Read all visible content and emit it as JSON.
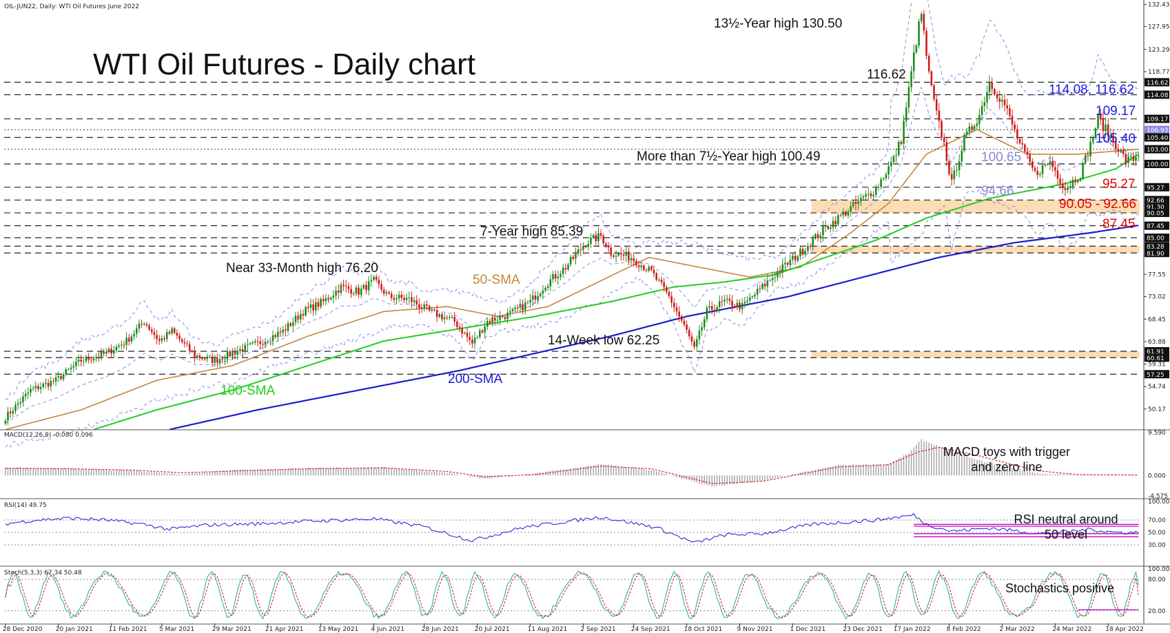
{
  "header": {
    "symbol_line": "OIL-JUN22, Daily:  WTI Oil Futures June 2022",
    "title": "WTI Oil Futures - Daily chart"
  },
  "colors": {
    "sma50": "#c8843c",
    "sma100": "#22cc22",
    "sma200": "#1a1ad0",
    "bollinger": "#8a8ae6",
    "zone": "#fcdcb4",
    "candle_up": "#1b8a1b",
    "candle_down": "#d01818",
    "red_label": "#e00000",
    "blue_label": "#1a1ae6",
    "purple_label": "#8a8ad6",
    "macd_hist": "#a0a0a0",
    "signal": "#e02020",
    "rsi": "#1a1ad0",
    "stoch_k": "#28b4a0",
    "stoch_d": "#e02020",
    "rsi_box": "#c000c0"
  },
  "chart_data": [
    {
      "type": "line",
      "title": "WTI Oil Futures - Daily chart",
      "subtitle": "OIL-JUN22, Daily:  WTI Oil Futures June 2022",
      "x": [
        "28 Dec 2020",
        "20 Jan 2021",
        "11 Feb 2021",
        "5 Mar 2021",
        "29 Mar 2021",
        "21 Apr 2021",
        "13 May 2021",
        "4 Jun 2021",
        "28 Jun 2021",
        "20 Jul 2021",
        "11 Aug 2021",
        "2 Sep 2021",
        "24 Sep 2021",
        "18 Oct 2021",
        "9 Nov 2021",
        "1 Dec 2021",
        "23 Dec 2021",
        "17 Jan 2022",
        "8 Feb 2022",
        "2 Mar 2022",
        "24 Mar 2022",
        "18 Apr 2022"
      ],
      "ylim": [
        46.5,
        132.5
      ],
      "y_ticks": [
        "132.43",
        "127.95",
        "123.29",
        "118.77",
        "114.08",
        "109.17",
        "105.40",
        "100.00",
        "95.27",
        "90.05",
        "85.00",
        "81.90",
        "77.55",
        "73.02",
        "68.45",
        "63.88",
        "59.31",
        "54.74",
        "50.17"
      ],
      "y_ticks_values": [
        132.43,
        127.95,
        123.29,
        118.77,
        114.08,
        109.17,
        105.4,
        100.0,
        95.27,
        90.05,
        85.0,
        81.9,
        77.55,
        73.02,
        68.45,
        63.88,
        59.31,
        54.74,
        50.17
      ],
      "level_boxes": [
        "116.62",
        "114.08",
        "109.17",
        "106.93",
        "105.40",
        "103.00",
        "100.00",
        "95.27",
        "92.66",
        "91.30",
        "90.05",
        "87.45",
        "85.00",
        "83.28",
        "81.90",
        "61.91",
        "60.61",
        "57.25"
      ],
      "level_box_values": [
        116.62,
        114.08,
        109.17,
        106.93,
        105.4,
        103.0,
        100.0,
        95.27,
        92.66,
        91.3,
        90.05,
        87.45,
        85.0,
        83.28,
        81.9,
        61.91,
        60.61,
        57.25
      ],
      "level_box_highlight": [
        "106.93"
      ],
      "dashed_levels": [
        116.62,
        114.08,
        109.17,
        105.4,
        100.0,
        95.27,
        92.66,
        90.05,
        87.45,
        85.0,
        83.28,
        81.9,
        61.91,
        60.61,
        57.25
      ],
      "dotted_levels": [
        103.0,
        106.93
      ],
      "zones": [
        [
          90.05,
          92.66
        ],
        [
          81.9,
          83.28
        ],
        [
          60.61,
          61.91
        ]
      ],
      "price_anchors": [
        [
          0,
          48.5
        ],
        [
          10,
          54
        ],
        [
          20,
          56
        ],
        [
          30,
          60
        ],
        [
          40,
          61.5
        ],
        [
          48,
          64
        ],
        [
          55,
          68
        ],
        [
          61,
          64
        ],
        [
          66,
          66
        ],
        [
          75,
          61
        ],
        [
          83,
          60
        ],
        [
          92,
          62
        ],
        [
          100,
          63.5
        ],
        [
          110,
          66
        ],
        [
          118,
          70
        ],
        [
          126,
          72
        ],
        [
          133,
          75
        ],
        [
          140,
          74
        ],
        [
          146,
          76.2
        ],
        [
          152,
          73
        ],
        [
          160,
          72.5
        ],
        [
          168,
          70
        ],
        [
          178,
          68
        ],
        [
          185,
          63.5
        ],
        [
          191,
          68
        ],
        [
          200,
          69.5
        ],
        [
          208,
          72
        ],
        [
          214,
          75.5
        ],
        [
          222,
          79
        ],
        [
          230,
          84
        ],
        [
          236,
          85.39
        ],
        [
          240,
          82
        ],
        [
          248,
          81
        ],
        [
          256,
          78
        ],
        [
          263,
          73
        ],
        [
          270,
          66
        ],
        [
          273,
          62.25
        ],
        [
          278,
          70
        ],
        [
          285,
          72
        ],
        [
          292,
          71
        ],
        [
          298,
          74
        ],
        [
          306,
          78
        ],
        [
          315,
          82
        ],
        [
          325,
          87
        ],
        [
          335,
          91
        ],
        [
          345,
          95
        ],
        [
          352,
          101
        ],
        [
          355,
          105
        ],
        [
          358,
          115
        ],
        [
          360,
          122
        ],
        [
          362,
          128
        ],
        [
          363,
          130.5
        ],
        [
          366,
          118
        ],
        [
          369,
          110
        ],
        [
          372,
          104
        ],
        [
          375,
          96
        ],
        [
          380,
          105
        ],
        [
          386,
          110
        ],
        [
          390,
          116.62
        ],
        [
          396,
          112
        ],
        [
          402,
          104
        ],
        [
          408,
          98
        ],
        [
          414,
          100.49
        ],
        [
          420,
          95
        ],
        [
          426,
          98
        ],
        [
          430,
          104
        ],
        [
          433,
          109.17
        ],
        [
          436,
          107
        ],
        [
          440,
          104
        ],
        [
          444,
          100.65
        ],
        [
          447,
          101
        ],
        [
          449,
          102
        ]
      ],
      "series": [
        {
          "name": "50-SMA",
          "anchors": [
            [
              0,
              46
            ],
            [
              30,
              50
            ],
            [
              60,
              56
            ],
            [
              90,
              59
            ],
            [
              120,
              65
            ],
            [
              150,
              70
            ],
            [
              175,
              71
            ],
            [
              195,
              69
            ],
            [
              215,
              71
            ],
            [
              235,
              76
            ],
            [
              255,
              81
            ],
            [
              275,
              79
            ],
            [
              295,
              77
            ],
            [
              315,
              79
            ],
            [
              335,
              86
            ],
            [
              350,
              92
            ],
            [
              365,
              102
            ],
            [
              385,
              107
            ],
            [
              405,
              102
            ],
            [
              425,
              102
            ],
            [
              449,
              103
            ]
          ]
        },
        {
          "name": "100-SMA",
          "anchors": [
            [
              35,
              46
            ],
            [
              60,
              50
            ],
            [
              90,
              54
            ],
            [
              120,
              59
            ],
            [
              150,
              64
            ],
            [
              180,
              66.5
            ],
            [
              210,
              69
            ],
            [
              240,
              72
            ],
            [
              265,
              75
            ],
            [
              285,
              76
            ],
            [
              305,
              77.5
            ],
            [
              325,
              81
            ],
            [
              345,
              84.5
            ],
            [
              365,
              89
            ],
            [
              390,
              93
            ],
            [
              420,
              96
            ],
            [
              440,
              99
            ],
            [
              449,
              102
            ]
          ]
        },
        {
          "name": "200-SMA",
          "anchors": [
            [
              65,
              46
            ],
            [
              100,
              50
            ],
            [
              140,
              54
            ],
            [
              180,
              58
            ],
            [
              210,
              61.5
            ],
            [
              240,
              65
            ],
            [
              270,
              69
            ],
            [
              290,
              71
            ],
            [
              310,
              73
            ],
            [
              340,
              77
            ],
            [
              370,
              81
            ],
            [
              400,
              84
            ],
            [
              430,
              86
            ],
            [
              449,
              87.5
            ]
          ]
        }
      ],
      "labels": [
        "13½-Year high 130.50",
        "116.62",
        "More than 7½-Year high 100.49",
        "7-Year high 85.39",
        "Near 33-Month high 76.20",
        "50-SMA",
        "14-Week low 62.25",
        "100-SMA",
        "200-SMA",
        "114.08, 116.62",
        "109.17",
        "105.40",
        "100.65",
        "95.27",
        "94.66",
        "90.05 - 92.66",
        "87.45"
      ]
    },
    {
      "type": "bar",
      "title": "MACD(12,26,9) -0.080 0.096",
      "ylim": [
        -4.575,
        9.59
      ],
      "y_ticks": [
        "9.590",
        "0.000",
        "-4.575"
      ],
      "y_ticks_values": [
        9.59,
        0,
        -4.575
      ],
      "series": [
        {
          "name": "MACD",
          "anchors": [
            [
              0,
              1.8
            ],
            [
              25,
              1.5
            ],
            [
              50,
              1.1
            ],
            [
              70,
              0.3
            ],
            [
              90,
              1.2
            ],
            [
              120,
              1.6
            ],
            [
              150,
              1.8
            ],
            [
              175,
              0.6
            ],
            [
              190,
              -0.8
            ],
            [
              210,
              0.5
            ],
            [
              236,
              2.5
            ],
            [
              256,
              1.2
            ],
            [
              280,
              -2.5
            ],
            [
              300,
              -1.2
            ],
            [
              330,
              2.3
            ],
            [
              350,
              2.5
            ],
            [
              358,
              5
            ],
            [
              363,
              8
            ],
            [
              370,
              6.5
            ],
            [
              385,
              3.5
            ],
            [
              400,
              1.5
            ],
            [
              410,
              0.4
            ],
            [
              425,
              0.1
            ],
            [
              449,
              -0.08
            ]
          ]
        },
        {
          "name": "Signal",
          "anchors": [
            [
              0,
              1.6
            ],
            [
              25,
              1.5
            ],
            [
              50,
              1.2
            ],
            [
              70,
              0.6
            ],
            [
              90,
              1.0
            ],
            [
              120,
              1.5
            ],
            [
              150,
              1.7
            ],
            [
              175,
              0.9
            ],
            [
              190,
              -0.3
            ],
            [
              210,
              0.2
            ],
            [
              236,
              2.1
            ],
            [
              256,
              1.5
            ],
            [
              280,
              -1.8
            ],
            [
              300,
              -1.3
            ],
            [
              330,
              1.9
            ],
            [
              350,
              2.4
            ],
            [
              362,
              5.3
            ],
            [
              370,
              6.3
            ],
            [
              385,
              4.5
            ],
            [
              400,
              2.3
            ],
            [
              410,
              1.0
            ],
            [
              425,
              0.2
            ],
            [
              449,
              0.096
            ]
          ]
        }
      ],
      "annotation": "MACD toys with trigger and zero line"
    },
    {
      "type": "line",
      "title": "RSI(14) 49.75",
      "ylim": [
        0,
        100
      ],
      "y_ticks": [
        "100.00",
        "70.00",
        "50.00",
        "30.00",
        "0.00"
      ],
      "y_ticks_values": [
        100,
        70,
        50,
        30,
        0
      ],
      "series": [
        {
          "name": "RSI",
          "anchors": [
            [
              0,
              64
            ],
            [
              12,
              70
            ],
            [
              25,
              73
            ],
            [
              40,
              70
            ],
            [
              55,
              63
            ],
            [
              65,
              55
            ],
            [
              80,
              62
            ],
            [
              100,
              64
            ],
            [
              120,
              68
            ],
            [
              146,
              72
            ],
            [
              165,
              60
            ],
            [
              185,
              37
            ],
            [
              205,
              58
            ],
            [
              236,
              75
            ],
            [
              258,
              58
            ],
            [
              273,
              33
            ],
            [
              285,
              46
            ],
            [
              300,
              48
            ],
            [
              320,
              63
            ],
            [
              345,
              70
            ],
            [
              360,
              78
            ],
            [
              365,
              63
            ],
            [
              375,
              52
            ],
            [
              390,
              57
            ],
            [
              400,
              53
            ],
            [
              410,
              48
            ],
            [
              420,
              51
            ],
            [
              430,
              55
            ],
            [
              440,
              50
            ],
            [
              449,
              49.75
            ]
          ]
        }
      ],
      "boxes": [
        [
          60,
          63
        ],
        [
          43,
          48
        ]
      ],
      "annotation": "RSI neutral around 50 level"
    },
    {
      "type": "line",
      "title": "Stoch(5,3,3) 67.34 50.48",
      "ylim": [
        0,
        100
      ],
      "y_ticks": [
        "100.00",
        "80.00",
        "20.00",
        "0.00"
      ],
      "y_ticks_values": [
        100,
        80,
        20,
        0
      ],
      "series": [
        {
          "name": "%K",
          "values_generated": true,
          "final": 67.34
        },
        {
          "name": "%D",
          "values_generated": true,
          "final": 50.48
        }
      ],
      "annotation": "Stochastics positive"
    }
  ]
}
